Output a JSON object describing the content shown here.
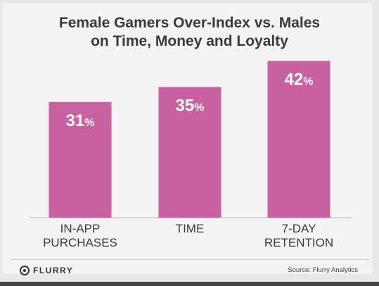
{
  "chart_data": {
    "type": "bar",
    "title_lines": [
      "Female Gamers Over-Index vs. Males",
      "on Time, Money and Loyalty"
    ],
    "categories": [
      [
        "IN-APP",
        "PURCHASES"
      ],
      [
        "TIME"
      ],
      [
        "7-DAY",
        "RETENTION"
      ]
    ],
    "values": [
      31,
      35,
      42
    ],
    "value_labels": [
      "31",
      "35",
      "42"
    ],
    "value_suffix": "%",
    "bar_color": "#c9609f",
    "ylim": [
      0,
      47
    ]
  },
  "footer": {
    "brand": "FLURRY",
    "source": "Source: Flurry Analytics"
  }
}
